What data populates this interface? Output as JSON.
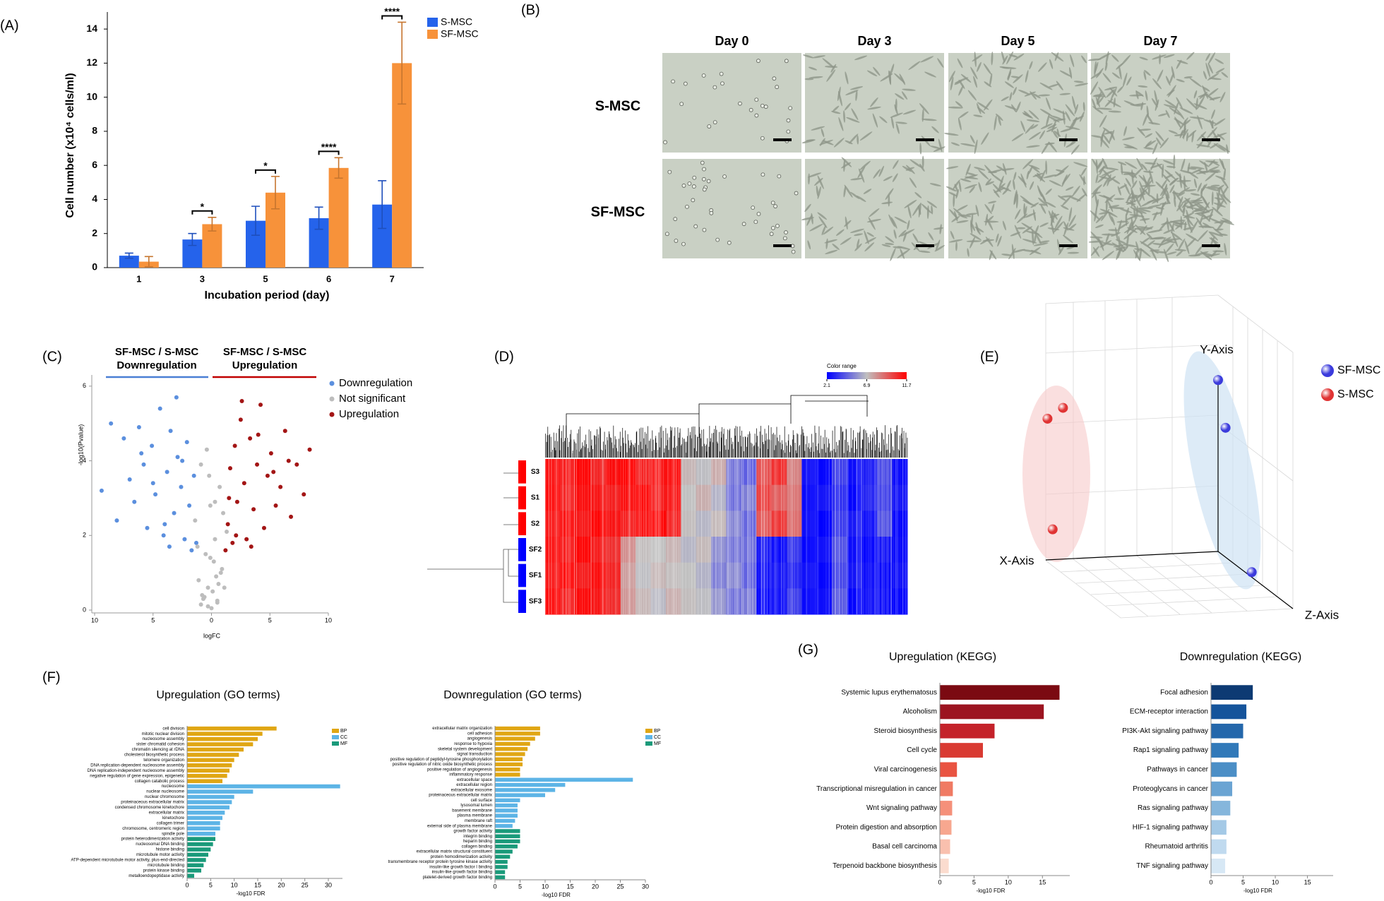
{
  "panel_labels": [
    "(A)",
    "(B)",
    "(C)",
    "(D)",
    "(E)",
    "(F)",
    "(G)"
  ],
  "micrographs": {
    "columns": [
      "Day 0",
      "Day 3",
      "Day 5",
      "Day 7"
    ],
    "rows": [
      "S-MSC",
      "SF-MSC"
    ]
  },
  "chart_data": [
    {
      "type": "bar",
      "x_label": "Incubation period (day)",
      "y_label": "Cell number (x10⁴ cells/ml)",
      "categories": [
        "1",
        "3",
        "5",
        "6",
        "7"
      ],
      "series": [
        {
          "name": "S-MSC",
          "color": "#2563eb",
          "values": [
            0.7,
            1.65,
            2.75,
            2.9,
            3.7
          ],
          "errors": [
            0.15,
            0.35,
            0.85,
            0.65,
            1.4
          ]
        },
        {
          "name": "SF-MSC",
          "color": "#f7923a",
          "values": [
            0.35,
            2.55,
            4.4,
            5.85,
            12.0
          ],
          "errors": [
            0.3,
            0.4,
            0.95,
            0.6,
            2.4
          ]
        }
      ],
      "significance": [
        null,
        "*",
        "*",
        "****",
        "****"
      ],
      "ylim": [
        0,
        15
      ],
      "yticks": [
        0,
        2,
        4,
        6,
        8,
        10,
        12,
        14
      ]
    },
    {
      "type": "scatter",
      "x_label": "logFC",
      "y_label": "-log10(Pvalue)",
      "groups": [
        {
          "title": "SF-MSC / S-MSC",
          "subtitle": "Downregulation",
          "color": "#4a7fd4"
        },
        {
          "title": "SF-MSC / S-MSC",
          "subtitle": "Upregulation",
          "color": "#c00000"
        }
      ],
      "series": [
        {
          "name": "Downregulation",
          "color": "#5b8fde",
          "x": [
            -9.4,
            -8.6,
            -8.1,
            -7.5,
            -7.0,
            -6.6,
            -6.2,
            -5.8,
            -5.5,
            -5.1,
            -4.8,
            -4.4,
            -4.1,
            -3.8,
            -3.5,
            -3.2,
            -2.9,
            -2.6,
            -2.3,
            -2.1,
            -1.9,
            -1.7,
            -1.5,
            -1.3,
            -3.0,
            -4.0,
            -5.0,
            -2.5,
            -3.6,
            -6.0
          ],
          "values": [
            3.2,
            5.0,
            2.4,
            4.6,
            3.5,
            2.9,
            4.9,
            3.9,
            2.2,
            4.4,
            3.1,
            5.4,
            2.0,
            3.7,
            4.8,
            2.6,
            4.1,
            3.3,
            1.9,
            4.5,
            2.8,
            1.6,
            3.6,
            1.8,
            5.7,
            2.3,
            3.4,
            4.0,
            1.7,
            4.2
          ]
        },
        {
          "name": "Not significant",
          "color": "#bdbdbd",
          "x": [
            -1.4,
            -1.1,
            -0.9,
            -0.7,
            -0.5,
            -0.3,
            -0.1,
            0.1,
            0.3,
            0.5,
            0.7,
            0.9,
            1.1,
            1.3,
            -0.8,
            -0.2,
            0.2,
            0.6,
            -0.4,
            0.4,
            0.0,
            -1.2,
            1.0,
            -0.6,
            0.8,
            -0.9,
            0.3,
            -0.1,
            0.5,
            -0.3
          ],
          "values": [
            2.4,
            0.8,
            3.9,
            0.3,
            1.5,
            0.1,
            2.8,
            0.5,
            1.9,
            0.2,
            3.3,
            1.1,
            0.6,
            2.1,
            0.4,
            3.6,
            1.3,
            0.7,
            4.3,
            0.9,
            0.05,
            1.7,
            2.6,
            0.35,
            1.0,
            0.15,
            2.9,
            1.4,
            0.25,
            0.6
          ]
        },
        {
          "name": "Upregulation",
          "color": "#a31515",
          "x": [
            1.2,
            1.4,
            1.6,
            1.8,
            2.0,
            2.2,
            2.5,
            2.8,
            3.0,
            3.3,
            3.6,
            3.9,
            4.2,
            4.5,
            4.8,
            5.1,
            5.5,
            5.9,
            6.3,
            6.8,
            7.3,
            7.9,
            8.4,
            2.6,
            3.4,
            1.5,
            4.0,
            2.1,
            5.3,
            6.6
          ],
          "values": [
            1.6,
            2.3,
            3.8,
            1.8,
            4.4,
            2.9,
            5.1,
            3.4,
            1.9,
            4.6,
            2.7,
            3.9,
            5.5,
            2.2,
            3.6,
            4.2,
            2.8,
            3.3,
            4.8,
            2.5,
            3.9,
            3.1,
            4.3,
            5.6,
            1.7,
            3.0,
            4.7,
            2.0,
            3.7,
            4.0
          ]
        }
      ],
      "xlim": [
        -10,
        10
      ],
      "xticks": [
        {
          "value": -10,
          "label": "10"
        },
        {
          "value": -5,
          "label": "5"
        },
        0,
        5,
        10
      ],
      "ylim": [
        0,
        6.3
      ],
      "yticks": [
        0,
        2,
        4,
        6
      ]
    },
    {
      "type": "heatmap",
      "rows": [
        "S3",
        "S1",
        "S2",
        "SF2",
        "SF1",
        "SF3"
      ],
      "row_colors": [
        "#ff0000",
        "#ff0000",
        "#ff0000",
        "#0000ff",
        "#0000ff",
        "#0000ff"
      ],
      "values": [
        [
          11.5,
          11.2,
          11.6,
          10.8,
          11.4,
          11.7,
          11.0,
          11.3,
          11.5,
          7.2,
          6.8,
          7.5,
          5.0,
          4.4,
          9.8,
          10.6,
          8.5,
          2.5,
          2.2,
          3.6,
          2.4,
          2.8,
          4.0,
          2.3
        ],
        [
          11.6,
          11.0,
          11.4,
          11.2,
          10.9,
          11.5,
          11.6,
          11.1,
          11.3,
          6.9,
          7.4,
          6.5,
          4.8,
          5.2,
          10.2,
          9.4,
          8.8,
          2.3,
          2.6,
          3.2,
          2.2,
          3.0,
          3.8,
          2.6
        ],
        [
          11.3,
          11.5,
          11.1,
          11.6,
          11.2,
          11.0,
          11.4,
          11.6,
          11.0,
          7.0,
          6.6,
          7.1,
          5.4,
          4.6,
          9.6,
          10.4,
          9.0,
          2.4,
          2.1,
          3.5,
          2.7,
          2.5,
          4.2,
          2.2
        ],
        [
          11.5,
          11.2,
          11.6,
          11.0,
          10.5,
          8.2,
          7.0,
          6.9,
          7.3,
          6.6,
          7.1,
          5.6,
          5.0,
          4.8,
          2.6,
          2.3,
          3.4,
          2.2,
          2.5,
          4.1,
          2.4,
          2.2,
          2.6,
          2.3
        ],
        [
          11.3,
          11.6,
          11.0,
          11.4,
          10.8,
          7.8,
          6.8,
          7.2,
          7.0,
          6.9,
          6.5,
          5.2,
          5.5,
          4.5,
          2.4,
          2.6,
          3.0,
          2.5,
          2.2,
          3.8,
          2.6,
          2.4,
          2.3,
          2.5
        ],
        [
          11.6,
          11.0,
          11.5,
          11.2,
          10.6,
          8.0,
          7.2,
          6.7,
          7.4,
          7.0,
          6.8,
          5.8,
          4.9,
          5.1,
          2.2,
          2.5,
          3.6,
          2.3,
          2.4,
          4.3,
          2.2,
          2.5,
          2.4,
          2.2
        ]
      ],
      "color_label": "Color range",
      "color_ticks": [
        2.1,
        6.9,
        11.7
      ],
      "colors": [
        "#0000ff",
        "#c0c0c0",
        "#ff0000"
      ]
    },
    {
      "type": "scatter3d",
      "x_label": "X-Axis",
      "y_label": "Y-Axis",
      "z_label": "Z-Axis",
      "series": [
        {
          "name": "SF-MSC",
          "color": "#3b3bdc",
          "x": [
            0,
            0,
            0
          ],
          "y": [
            1.02,
            0.77,
            0.03
          ],
          "z": [
            0,
            0.1,
            0.45
          ]
        },
        {
          "name": "S-MSC",
          "color": "#e03434",
          "x": [
            0.9,
            0.99,
            0.96
          ],
          "y": [
            0.9,
            0.84,
            0.18
          ],
          "z": [
            0,
            0,
            0
          ]
        }
      ]
    },
    {
      "type": "hbar",
      "title": "Upregulation (GO terms)",
      "x_label": "-log10 FDR",
      "xlim": [
        0,
        33
      ],
      "xticks": [
        0,
        5,
        10,
        15,
        20,
        25,
        30
      ],
      "series": [
        {
          "name": "BP",
          "color": "#e0a614",
          "categories": [
            "cell division",
            "mitotic nuclear division",
            "nucleosome assembly",
            "sister chromatid cohesion",
            "chromatin silencing at rDNA",
            "cholesterol biosynthetic process",
            "telomere organization",
            "DNA replication-dependent nucleosome assembly",
            "DNA replication-independent nucleosome assembly",
            "negative regulation of gene expression, epigenetic",
            "collagen catabolic process"
          ],
          "values": [
            19,
            16,
            15,
            14,
            12,
            11,
            10,
            9.5,
            9,
            8.5,
            7.5
          ]
        },
        {
          "name": "CC",
          "color": "#5db4e6",
          "categories": [
            "nucleosome",
            "nuclear nucleosome",
            "nuclear chromosome",
            "proteinaceous extracellular matrix",
            "condensed chromosome kinetochore",
            "extracellular matrix",
            "kinetochore",
            "collagen trimer",
            "chromosome, centromeric region",
            "spindle pole"
          ],
          "values": [
            32.5,
            14,
            10,
            9.5,
            9,
            8,
            7.5,
            7,
            7,
            6
          ]
        },
        {
          "name": "MF",
          "color": "#1a9a7a",
          "categories": [
            "protein heterodimerization activity",
            "nucleosomal DNA binding",
            "histone binding",
            "microtubule motor activity",
            "ATP-dependent microtubule motor activity, plus-end-directed",
            "microtubule binding",
            "protein kinase binding",
            "metalloendopeptidase activity"
          ],
          "values": [
            6,
            5.5,
            5,
            4.5,
            4,
            3.5,
            3,
            1.5
          ]
        }
      ]
    },
    {
      "type": "hbar",
      "title": "Downregulation (GO terms)",
      "x_label": "-log10 FDR",
      "xlim": [
        0,
        30
      ],
      "xticks": [
        0,
        5,
        10,
        15,
        20,
        25,
        30
      ],
      "series": [
        {
          "name": "BP",
          "color": "#e0a614",
          "categories": [
            "extracellular matrix organization",
            "cell adhesion",
            "angiogenesis",
            "response to hypoxia",
            "skeletal system development",
            "signal transduction",
            "positive regulation of peptidyl-tyrosine phosphorylation",
            "positive regulation of nitric oxide biosynthetic process",
            "positive regulation of angiogenesis",
            "inflammatory response"
          ],
          "values": [
            9,
            9,
            8,
            7,
            6.5,
            6,
            5.5,
            5.5,
            5,
            5
          ]
        },
        {
          "name": "CC",
          "color": "#5db4e6",
          "categories": [
            "extracellular space",
            "extracellular region",
            "extracellular exosome",
            "proteinaceous extracellular matrix",
            "cell surface",
            "lysosomal lumen",
            "basement membrane",
            "plasma membrane",
            "membrane raft",
            "external side of plasma membrane"
          ],
          "values": [
            27.5,
            14,
            12,
            10,
            5,
            4.5,
            4.5,
            4.5,
            4,
            3.5
          ]
        },
        {
          "name": "MF",
          "color": "#1a9a7a",
          "categories": [
            "growth factor activity",
            "integrin binding",
            "heparin binding",
            "collagen binding",
            "extracellular matrix structural constituent",
            "protein homodimerization activity",
            "transmembrane receptor protein tyrosine kinase activity",
            "insulin-like growth factor I binding",
            "insulin-like growth factor binding",
            "platelet-derived growth factor binding"
          ],
          "values": [
            5,
            5,
            5,
            4.5,
            3.5,
            3,
            2.5,
            2.5,
            2,
            2
          ]
        }
      ]
    },
    {
      "type": "hbar",
      "title": "Upregulation (KEGG)",
      "x_label": "-log10 FDR",
      "xlim": [
        0,
        19
      ],
      "xticks": [
        0,
        5,
        10,
        15
      ],
      "categories": [
        "Systemic lupus erythematosus",
        "Alcoholism",
        "Steroid biosynthesis",
        "Cell cycle",
        "Viral carcinogenesis",
        "Transcriptional misregulation in cancer",
        "Wnt signaling pathway",
        "Protein digestion and absorption",
        "Basal cell carcinoma",
        "Terpenoid backbone biosynthesis"
      ],
      "values": [
        17.5,
        15.2,
        8,
        6.3,
        2.5,
        1.9,
        1.8,
        1.7,
        1.5,
        1.3
      ],
      "colors": [
        "#7b0a12",
        "#9c1420",
        "#c4222a",
        "#d93a32",
        "#e95442",
        "#f07a63",
        "#f5907a",
        "#f7a78f",
        "#f9c0ae",
        "#fbdccf"
      ]
    },
    {
      "type": "hbar",
      "title": "Downregulation (KEGG)",
      "x_label": "-log10 FDR",
      "xlim": [
        0,
        19
      ],
      "xticks": [
        0,
        5,
        10,
        15
      ],
      "categories": [
        "Focal adhesion",
        "ECM-receptor interaction",
        "PI3K-Akt signaling pathway",
        "Rap1 signaling pathway",
        "Pathways in cancer",
        "Proteoglycans in cancer",
        "Ras signaling pathway",
        "HIF-1 signaling pathway",
        "Rheumatoid arthritis",
        "TNF signaling pathway"
      ],
      "values": [
        6.5,
        5.5,
        5,
        4.3,
        4,
        3.3,
        3,
        2.4,
        2.4,
        2.2
      ],
      "colors": [
        "#0d3a73",
        "#15549b",
        "#2467ab",
        "#3179b9",
        "#4c8fc6",
        "#6aa4d3",
        "#85b6dc",
        "#a4c9e6",
        "#c0daef",
        "#d7e8f5"
      ]
    }
  ]
}
